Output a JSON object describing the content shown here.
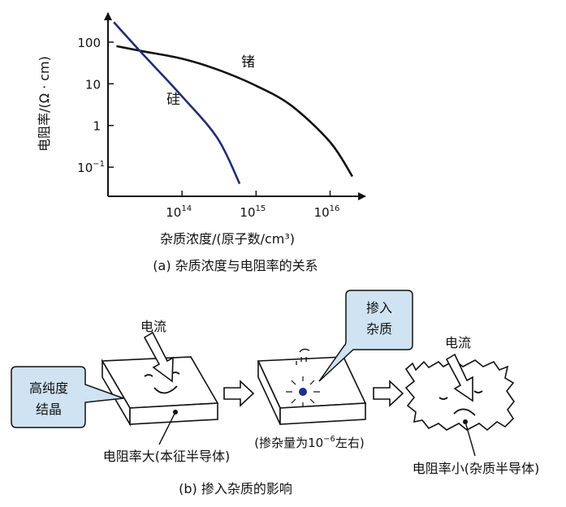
{
  "chart_data": {
    "type": "line",
    "title": "",
    "xlabel": "杂质浓度/(原子数/cm³)",
    "ylabel": "电阻率/(Ω · cm)",
    "x_scale": "log",
    "y_scale": "log",
    "xlim": [
      10000000000000.0,
      3e+16
    ],
    "ylim": [
      0.02,
      500
    ],
    "x_ticks": [
      {
        "value": 100000000000000.0,
        "base": "10",
        "exp": "14"
      },
      {
        "value": 1000000000000000.0,
        "base": "10",
        "exp": "15"
      },
      {
        "value": 1e+16,
        "base": "10",
        "exp": "16"
      }
    ],
    "y_ticks": [
      {
        "value": 100,
        "label": "100",
        "exp": ""
      },
      {
        "value": 10,
        "label": "10",
        "exp": ""
      },
      {
        "value": 1,
        "label": "1",
        "exp": ""
      },
      {
        "value": 0.1,
        "label": "10",
        "exp": "−1"
      }
    ],
    "series": [
      {
        "name": "锗",
        "color": "#111111",
        "x": [
          13000000000000.0,
          30000000000000.0,
          100000000000000.0,
          300000000000000.0,
          1000000000000000.0,
          3000000000000000.0,
          1e+16,
          2e+16
        ],
        "y": [
          80,
          60,
          40,
          22,
          9,
          3,
          0.4,
          0.06
        ]
      },
      {
        "name": "硅",
        "color": "#1f2c7a",
        "x": [
          12000000000000.0,
          30000000000000.0,
          100000000000000.0,
          300000000000000.0,
          600000000000000.0
        ],
        "y": [
          300,
          50,
          5,
          0.5,
          0.04
        ]
      }
    ]
  },
  "part_a_caption": "(a) 杂质浓度与电阻率的关系",
  "part_b": {
    "caption": "(b) 掺入杂质的影响",
    "label_current_left": "电流",
    "label_current_right": "电流",
    "bubble_pure_line1": "高纯度",
    "bubble_pure_line2": "结晶",
    "bubble_dope_line1": "掺入",
    "bubble_dope_line2": "杂质",
    "caption_intrinsic": "电阻率大(本征半导体)",
    "caption_doping_pre": "(掺杂量为10",
    "caption_doping_exp": "−6",
    "caption_doping_post": "左右)",
    "caption_impurity": "电阻率小(杂质半导体)",
    "bubble_color": "#cfe3f2"
  }
}
